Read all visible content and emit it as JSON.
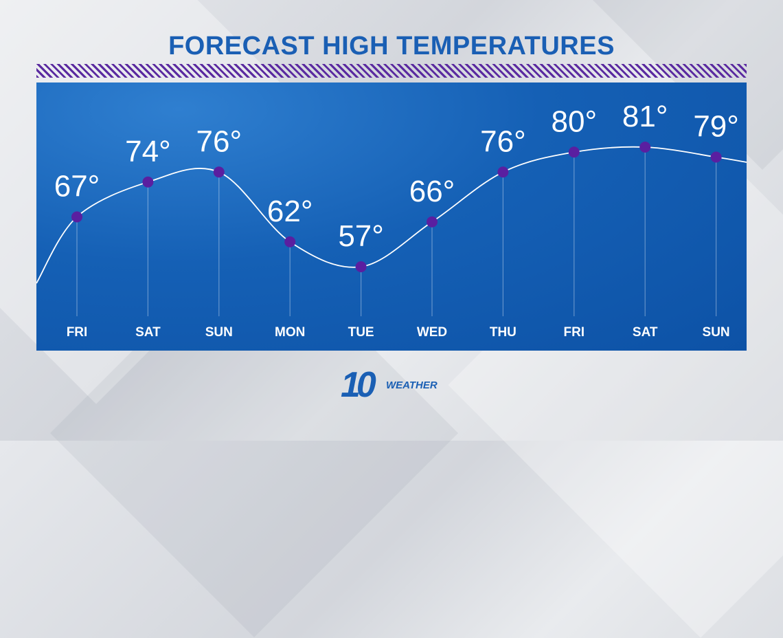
{
  "title": "FORECAST HIGH TEMPERATURES",
  "brand": {
    "number": "10",
    "word": "WEATHER"
  },
  "colors": {
    "title": "#1a5fb4",
    "panel": "#1560b5",
    "point": "#5a1fa0",
    "stripe": "#5a2aa0"
  },
  "chart_data": {
    "type": "line",
    "categories": [
      "FRI",
      "SAT",
      "SUN",
      "MON",
      "TUE",
      "WED",
      "THU",
      "FRI",
      "SAT",
      "SUN"
    ],
    "values": [
      67,
      74,
      76,
      62,
      57,
      66,
      76,
      80,
      81,
      79
    ],
    "value_labels": [
      "67°",
      "74°",
      "76°",
      "62°",
      "57°",
      "66°",
      "76°",
      "80°",
      "81°",
      "79°"
    ],
    "title": "FORECAST HIGH TEMPERATURES",
    "xlabel": "",
    "ylabel": "",
    "grid": false
  }
}
